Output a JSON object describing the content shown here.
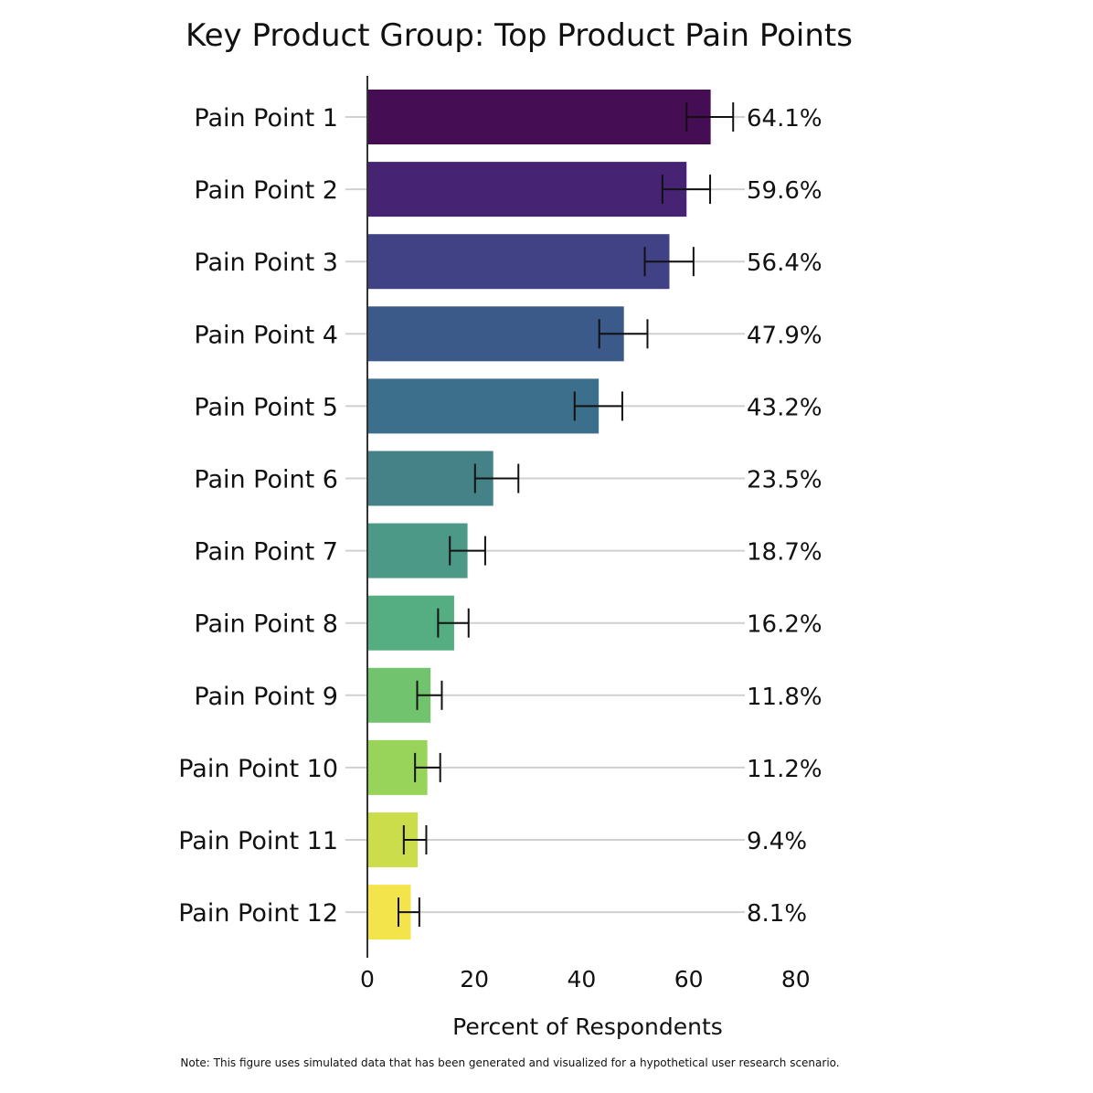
{
  "chart_data": {
    "type": "bar",
    "orientation": "horizontal",
    "title": "Key Product Group: Top Product Pain Points",
    "xlabel": "Percent of Respondents",
    "ylabel": "",
    "xlim": [
      0,
      80
    ],
    "x_ticks": [
      0,
      20,
      40,
      60,
      80
    ],
    "grid": "horizontal reference lines at each category",
    "categories": [
      "Pain Point 1",
      "Pain Point 2",
      "Pain Point 3",
      "Pain Point 4",
      "Pain Point 5",
      "Pain Point 6",
      "Pain Point 7",
      "Pain Point 8",
      "Pain Point 9",
      "Pain Point 10",
      "Pain Point 11",
      "Pain Point 12"
    ],
    "values": [
      64.1,
      59.6,
      56.4,
      47.9,
      43.2,
      23.5,
      18.7,
      16.2,
      11.8,
      11.2,
      9.4,
      8.1
    ],
    "value_labels": [
      "64.1%",
      "59.6%",
      "56.4%",
      "47.9%",
      "43.2%",
      "23.5%",
      "18.7%",
      "16.2%",
      "11.8%",
      "11.2%",
      "9.4%",
      "8.1%"
    ],
    "error_low": [
      59.6,
      55.1,
      51.8,
      43.3,
      38.7,
      20.1,
      15.4,
      13.2,
      9.3,
      8.9,
      6.8,
      5.8
    ],
    "error_high": [
      68.3,
      64.0,
      60.9,
      52.3,
      47.6,
      28.2,
      22.0,
      18.9,
      13.9,
      13.6,
      11.0,
      9.7
    ],
    "colors": [
      "#440d54",
      "#472374",
      "#414186",
      "#3b5989",
      "#3c6f8b",
      "#448287",
      "#4c9988",
      "#55ae81",
      "#72c36d",
      "#98d45a",
      "#cbdd4a",
      "#f4e44c"
    ],
    "note": "Note: This figure uses simulated data that has been generated and visualized for a hypothetical user research scenario."
  }
}
